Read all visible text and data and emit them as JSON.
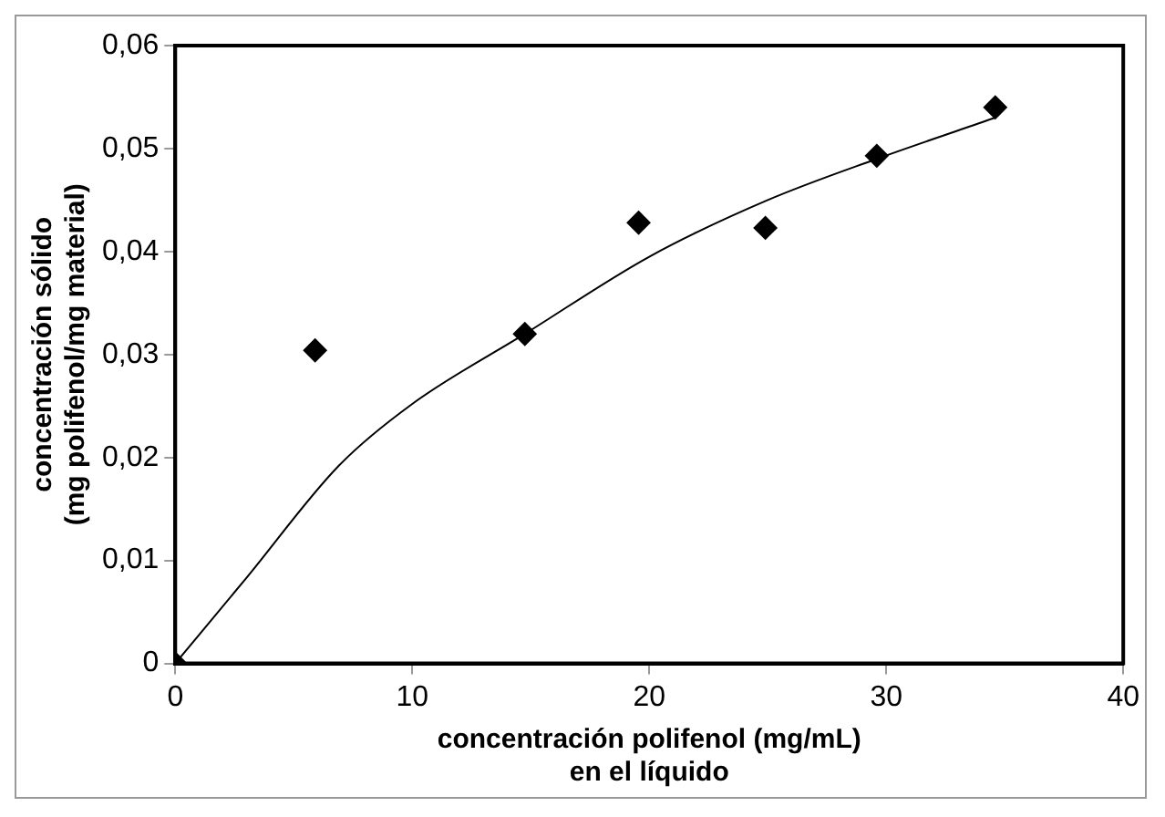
{
  "chart_data": {
    "type": "scatter",
    "xlabel": "concentración polifenol (mg/mL)\nen el líquido",
    "ylabel": "concentración sólido\n(mg polifenol/mg material)",
    "xlim": [
      0,
      40
    ],
    "ylim": [
      0,
      0.06
    ],
    "xticks": [
      0,
      10,
      20,
      30,
      40
    ],
    "yticks": [
      0,
      {
        "value": 0.01,
        "label": "0,01"
      },
      {
        "value": 0.02,
        "label": "0,02"
      },
      {
        "value": 0.03,
        "label": "0,03"
      },
      {
        "value": 0.04,
        "label": "0,04"
      },
      {
        "value": 0.05,
        "label": "0,05"
      },
      {
        "value": 0.06,
        "label": "0,06"
      }
    ],
    "grid": false,
    "legend": false,
    "marker": "diamond",
    "series": [
      {
        "color": "#000000",
        "x": [
          0,
          5.9,
          14.75,
          19.55,
          24.9,
          29.6,
          34.6
        ],
        "values": [
          0,
          0.0304,
          0.032,
          0.0428,
          0.0423,
          0.0493,
          0.054
        ]
      },
      {
        "type": "line",
        "color": "#000000",
        "marker": "none",
        "line_style": "solid",
        "x": [
          0,
          3,
          6.9,
          10,
          14.75,
          20,
          25,
          29.6,
          34.6
        ],
        "values": [
          0,
          0.0083,
          0.0192,
          0.0252,
          0.032,
          0.0395,
          0.045,
          0.049,
          0.053
        ]
      }
    ]
  }
}
